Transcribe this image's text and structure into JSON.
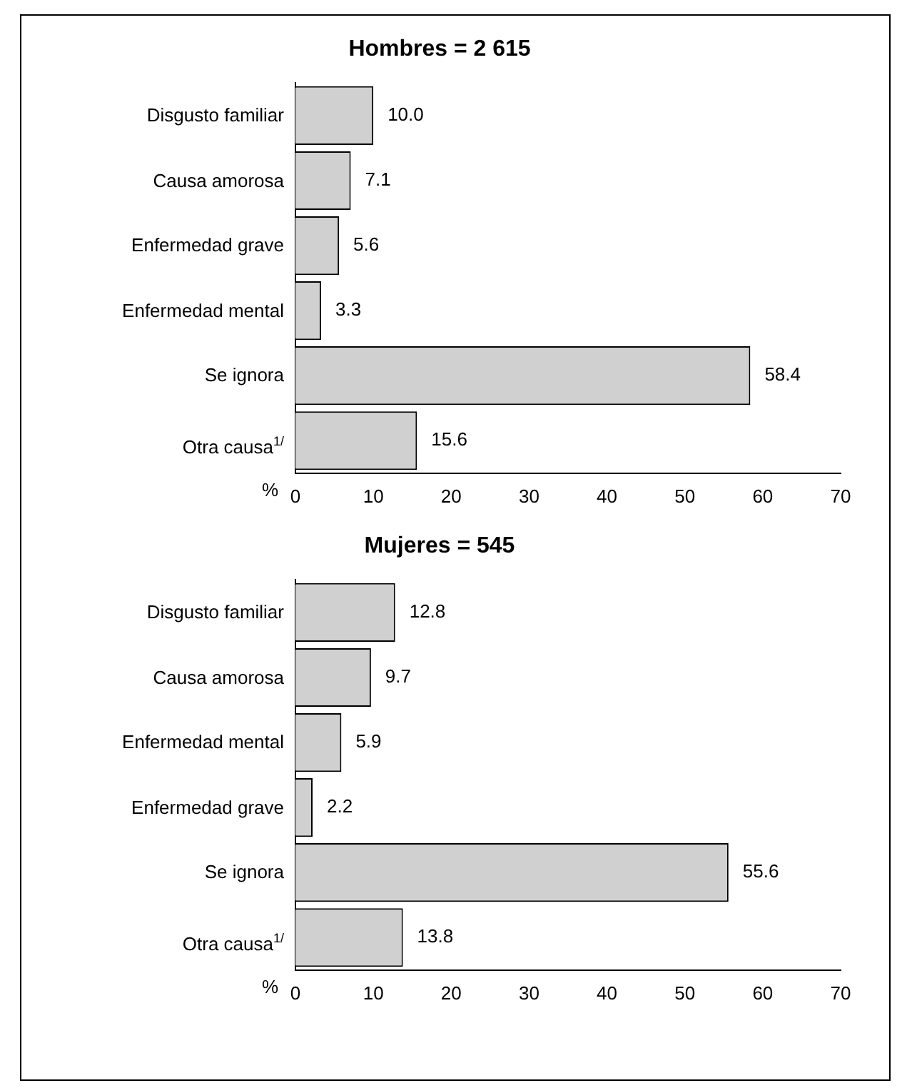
{
  "chart_data": [
    {
      "type": "bar",
      "orientation": "horizontal",
      "title": "Hombres = 2 615",
      "xlabel": "%",
      "categories": [
        "Disgusto familiar",
        "Causa amorosa",
        "Enfermedad grave",
        "Enfermedad mental",
        "Se ignora",
        "Otra causa$^{1/}$"
      ],
      "values": [
        10.0,
        7.1,
        5.6,
        3.3,
        58.4,
        15.6
      ],
      "value_labels": [
        "10.0",
        "7.1",
        "5.6",
        "3.3",
        "58.4",
        "15.6"
      ],
      "color": "#d0d0d0",
      "xlim": [
        0,
        70
      ],
      "xticks": [
        0,
        10,
        20,
        30,
        40,
        50,
        60,
        70
      ],
      "grid": false,
      "legend": false
    },
    {
      "type": "bar",
      "orientation": "horizontal",
      "title": "Mujeres = 545",
      "xlabel": "%",
      "categories": [
        "Disgusto familiar",
        "Causa amorosa",
        "Enfermedad mental",
        "Enfermedad grave",
        "Se ignora",
        "Otra causa$^{1/}$"
      ],
      "values": [
        12.8,
        9.7,
        5.9,
        2.2,
        55.6,
        13.8
      ],
      "value_labels": [
        "12.8",
        "9.7",
        "5.9",
        "2.2",
        "55.6",
        "13.8"
      ],
      "color": "#d0d0d0",
      "xlim": [
        0,
        70
      ],
      "xticks": [
        0,
        10,
        20,
        30,
        40,
        50,
        60,
        70
      ],
      "grid": false,
      "legend": false
    }
  ]
}
